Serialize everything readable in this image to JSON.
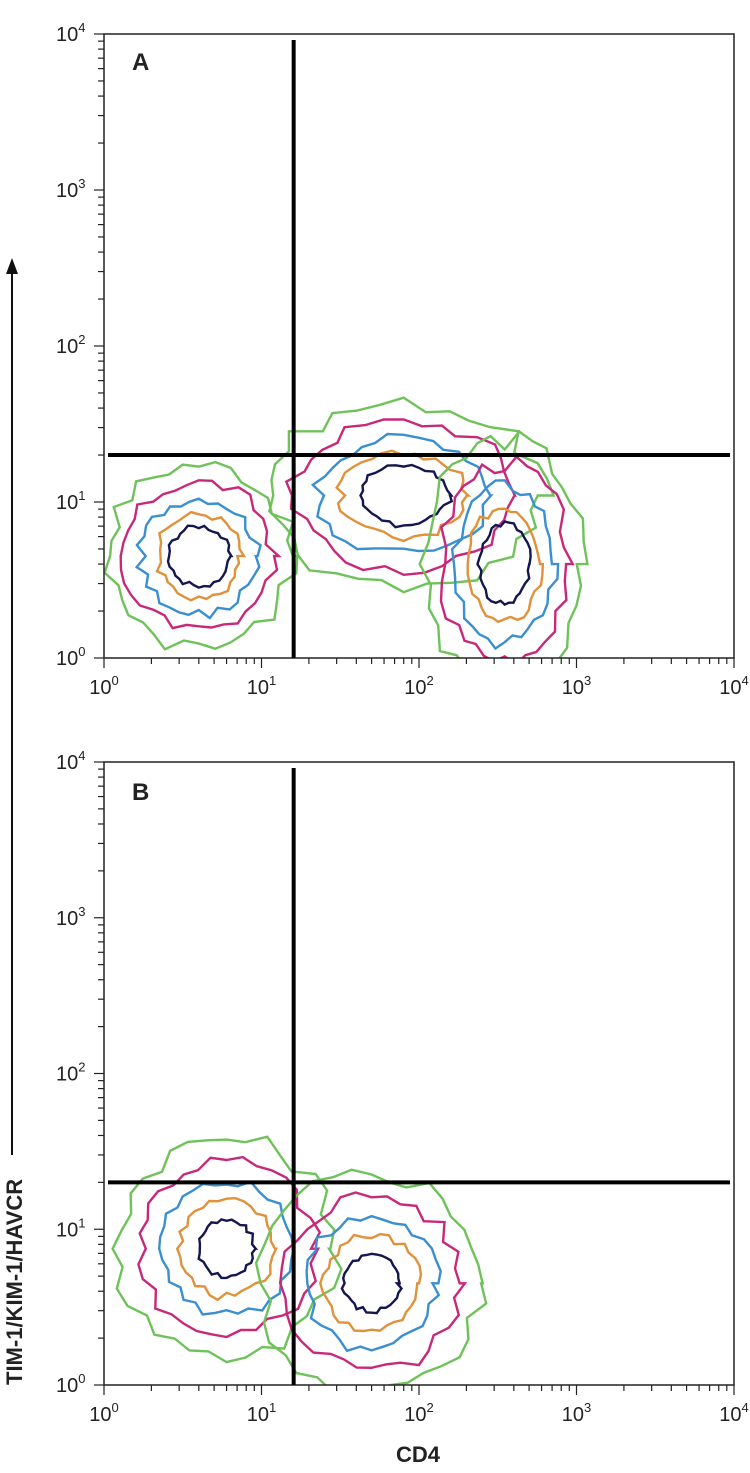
{
  "chart_data": [
    {
      "type": "contour",
      "panel": "A",
      "x_scale": "log",
      "y_scale": "log",
      "xlim": [
        1,
        10000
      ],
      "ylim": [
        1,
        10000
      ],
      "x_tick_labels": [
        "10^0",
        "10^1",
        "10^2",
        "10^3",
        "10^4"
      ],
      "y_tick_labels": [
        "10^0",
        "10^1",
        "10^2",
        "10^3",
        "10^4"
      ],
      "quadrant_gate": {
        "x": 16,
        "y": 20
      },
      "populations": [
        {
          "cx": 4,
          "cy": 4.5,
          "note": "double-negative cluster"
        },
        {
          "cx": 80,
          "cy": 11,
          "note": "CD4+ cluster"
        },
        {
          "cx": 350,
          "cy": 4,
          "note": "CD4 high cluster"
        }
      ],
      "contour_colors": [
        "#6fc25a",
        "#c8287a",
        "#3a8fd0",
        "#e0913a",
        "#141650"
      ]
    },
    {
      "type": "contour",
      "panel": "B",
      "x_scale": "log",
      "y_scale": "log",
      "xlim": [
        1,
        10000
      ],
      "ylim": [
        1,
        10000
      ],
      "x_tick_labels": [
        "10^0",
        "10^1",
        "10^2",
        "10^3",
        "10^4"
      ],
      "y_tick_labels": [
        "10^0",
        "10^1",
        "10^2",
        "10^3",
        "10^4"
      ],
      "quadrant_gate": {
        "x": 16,
        "y": 20
      },
      "populations": [
        {
          "cx": 6,
          "cy": 7.5,
          "note": "double-negative cluster"
        },
        {
          "cx": 50,
          "cy": 4.5,
          "note": "CD4+ cluster"
        }
      ],
      "contour_colors": [
        "#6fc25a",
        "#c8287a",
        "#3a8fd0",
        "#e0913a",
        "#141650"
      ]
    }
  ],
  "labels": {
    "panel_a": "A",
    "panel_b": "B",
    "x_axis_title": "CD4",
    "y_axis_title": "TIM-1/KIM-1/HAVCR"
  },
  "tick_base": "10",
  "tick_exponents": [
    "0",
    "1",
    "2",
    "3",
    "4"
  ]
}
